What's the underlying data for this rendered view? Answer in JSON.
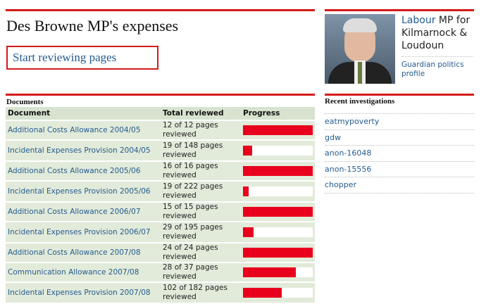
{
  "header": {
    "title": "Des Browne MP's expenses",
    "button": "Start reviewing pages"
  },
  "profile": {
    "party": "Labour",
    "role": "MP for Kilmarnock & Loudoun",
    "link": "Guardian politics profile"
  },
  "table": {
    "caption": "Documents",
    "columns": [
      "Document",
      "Total reviewed",
      "Progress"
    ],
    "rows": [
      {
        "document": "Additional Costs Allowance 2004/05",
        "total_reviewed": "12 of 12 pages reviewed",
        "reviewed": 12,
        "pages": 12
      },
      {
        "document": "Incidental Expenses Provision 2004/05",
        "total_reviewed": "19 of 148 pages reviewed",
        "reviewed": 19,
        "pages": 148
      },
      {
        "document": "Additional Costs Allowance 2005/06",
        "total_reviewed": "16 of 16 pages reviewed",
        "reviewed": 16,
        "pages": 16
      },
      {
        "document": "Incidental Expenses Provision 2005/06",
        "total_reviewed": "19 of 222 pages reviewed",
        "reviewed": 19,
        "pages": 222
      },
      {
        "document": "Additional Costs Allowance 2006/07",
        "total_reviewed": "15 of 15 pages reviewed",
        "reviewed": 15,
        "pages": 15
      },
      {
        "document": "Incidental Expenses Provision 2006/07",
        "total_reviewed": "29 of 195 pages reviewed",
        "reviewed": 29,
        "pages": 195
      },
      {
        "document": "Additional Costs Allowance 2007/08",
        "total_reviewed": "24 of 24 pages reviewed",
        "reviewed": 24,
        "pages": 24
      },
      {
        "document": "Communication Allowance 2007/08",
        "total_reviewed": "28 of 37 pages reviewed",
        "reviewed": 28,
        "pages": 37
      },
      {
        "document": "Incidental Expenses Provision 2007/08",
        "total_reviewed": "102 of 182 pages reviewed",
        "reviewed": 102,
        "pages": 182
      }
    ]
  },
  "investigations": {
    "title": "Recent investigations",
    "items": [
      "eatmypoverty",
      "gdw",
      "anon-16048",
      "anon-15556",
      "chopper"
    ]
  }
}
